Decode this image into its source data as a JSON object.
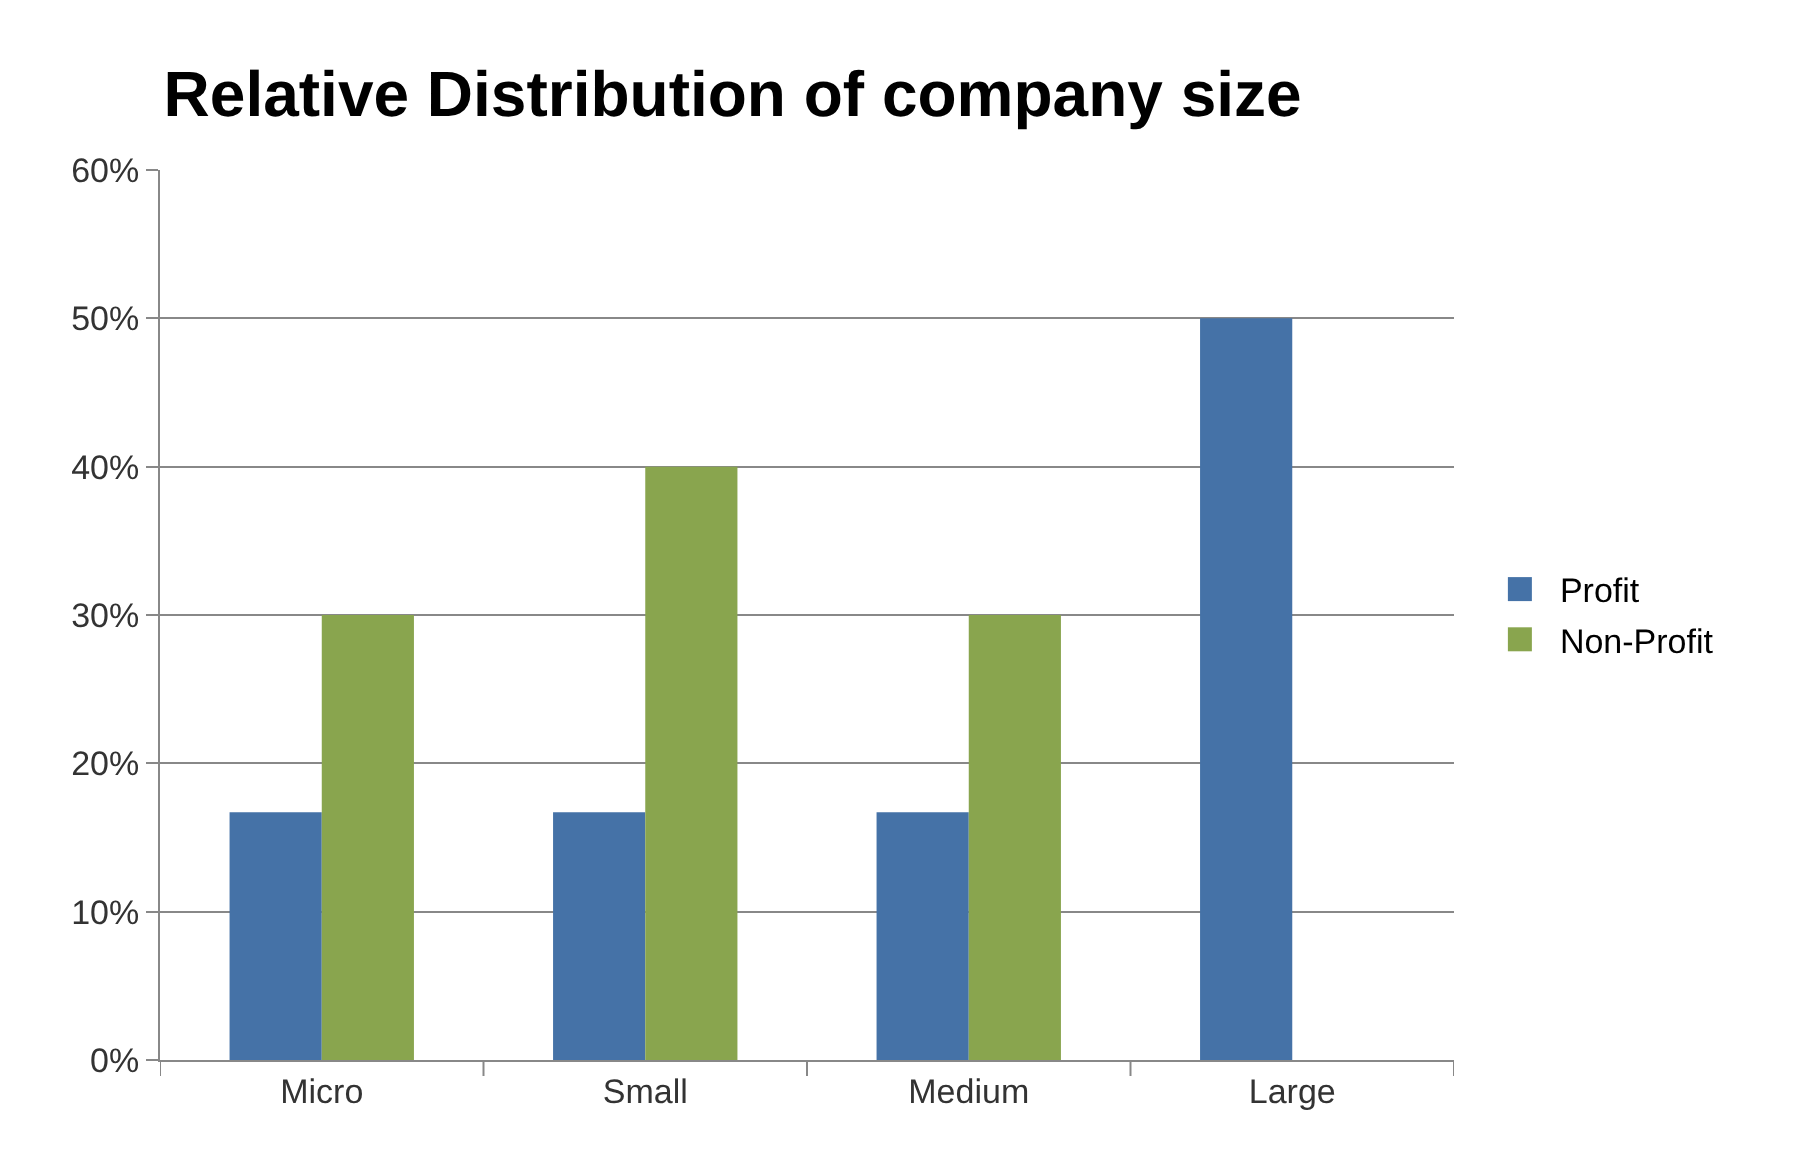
{
  "chart_data": {
    "type": "bar",
    "title": "Relative Distribution of company size",
    "categories": [
      "Micro",
      "Small",
      "Medium",
      "Large"
    ],
    "series": [
      {
        "name": "Profit",
        "color": "#4572a7",
        "values": [
          16.7,
          16.7,
          16.7,
          50
        ]
      },
      {
        "name": "Non-Profit",
        "color": "#89a54e",
        "values": [
          30,
          40,
          30,
          0
        ]
      }
    ],
    "ylim": [
      0,
      60
    ],
    "yticks": [
      {
        "value": 0,
        "label": "0%"
      },
      {
        "value": 10,
        "label": "10%"
      },
      {
        "value": 20,
        "label": "20%"
      },
      {
        "value": 30,
        "label": "30%"
      },
      {
        "value": 40,
        "label": "40%"
      },
      {
        "value": 50,
        "label": "50%"
      },
      {
        "value": 60,
        "label": "60%"
      }
    ],
    "grid": "y",
    "legend": "right"
  }
}
